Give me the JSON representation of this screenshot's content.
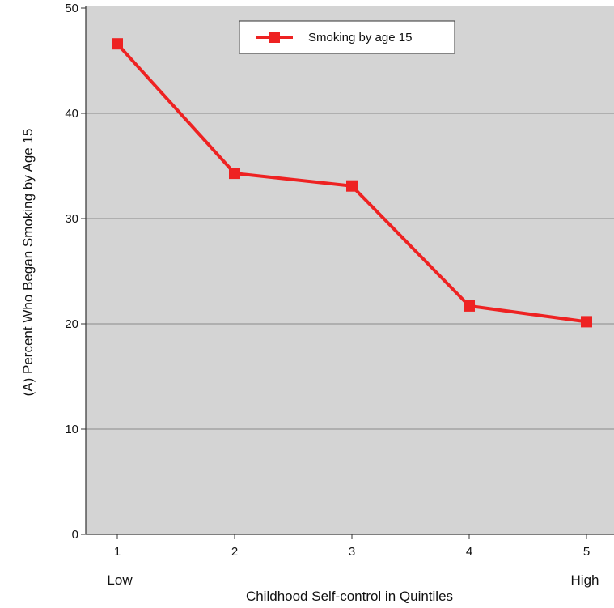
{
  "chart_data": {
    "type": "line",
    "x": [
      1,
      2,
      3,
      4,
      5
    ],
    "x_tick_labels": [
      "1",
      "2",
      "3",
      "4",
      "5"
    ],
    "x_end_labels": {
      "low": "Low",
      "high": "High"
    },
    "series": [
      {
        "name": "Smoking by age 15",
        "values": [
          46.6,
          34.3,
          33.1,
          21.7,
          20.2
        ],
        "color": "#ee2222"
      }
    ],
    "xlabel": "Childhood Self-control in Quintiles",
    "ylabel": "(A) Percent Who Began Smoking by Age 15",
    "ylim": [
      0,
      50
    ],
    "y_ticks": [
      0,
      10,
      20,
      30,
      40,
      50
    ],
    "grid": true,
    "legend_position": "top-center",
    "plot_background": "#d4d4d4",
    "gridline_color": "#999999"
  }
}
